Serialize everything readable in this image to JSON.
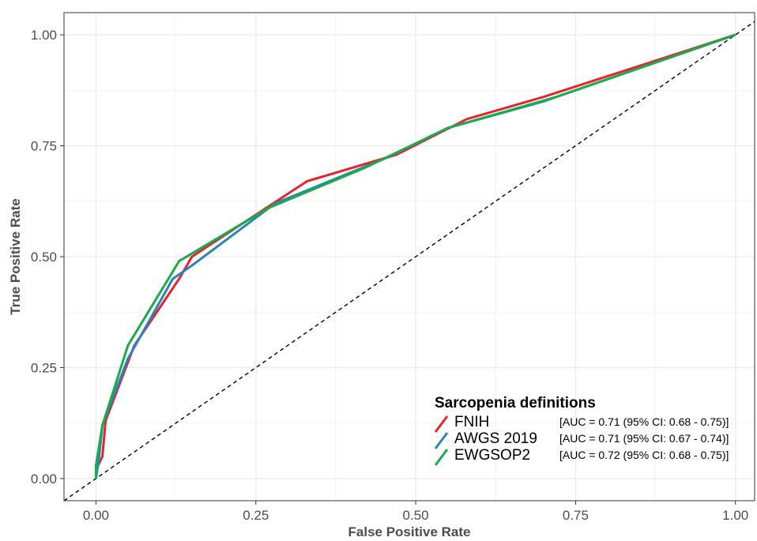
{
  "chart_data": {
    "type": "line",
    "xlabel": "False Positive Rate",
    "ylabel": "True Positive Rate",
    "xlim": [
      -0.05,
      1.03
    ],
    "ylim": [
      -0.05,
      1.05
    ],
    "x_ticks": [
      0,
      0.25,
      0.5,
      0.75,
      1
    ],
    "x_tick_labels": [
      "0.00",
      "0.25",
      "0.50",
      "0.75",
      "1.00"
    ],
    "y_ticks": [
      0,
      0.25,
      0.5,
      0.75,
      1
    ],
    "y_tick_labels": [
      "0.00",
      "0.25",
      "0.50",
      "0.75",
      "1.00"
    ],
    "grid": true,
    "legend": {
      "title": "Sarcopenia definitions",
      "placement": "bottom-right"
    },
    "reference_line": {
      "style": "dashed",
      "color": "#000000",
      "points": [
        [
          -0.05,
          -0.05
        ],
        [
          1.03,
          1.03
        ]
      ]
    },
    "series": [
      {
        "name": "FNIH",
        "auc_label": "[AUC = 0.71 (95% CI: 0.68 - 0.75)]",
        "color": "#e8242b",
        "points": [
          [
            0,
            0
          ],
          [
            0,
            0.02
          ],
          [
            0.01,
            0.05
          ],
          [
            0.015,
            0.13
          ],
          [
            0.06,
            0.3
          ],
          [
            0.13,
            0.45
          ],
          [
            0.15,
            0.5
          ],
          [
            0.33,
            0.67
          ],
          [
            0.47,
            0.73
          ],
          [
            0.58,
            0.81
          ],
          [
            0.7,
            0.86
          ],
          [
            1,
            1
          ]
        ]
      },
      {
        "name": "AWGS 2019",
        "auc_label": "[AUC = 0.71 (95% CI: 0.67 - 0.74)]",
        "color": "#2b83ba",
        "points": [
          [
            0,
            0
          ],
          [
            0.005,
            0.05
          ],
          [
            0.01,
            0.12
          ],
          [
            0.05,
            0.27
          ],
          [
            0.12,
            0.45
          ],
          [
            0.15,
            0.48
          ],
          [
            0.28,
            0.62
          ],
          [
            0.45,
            0.72
          ],
          [
            0.55,
            0.79
          ],
          [
            0.7,
            0.85
          ],
          [
            1,
            1
          ]
        ]
      },
      {
        "name": "EWGSOP2",
        "auc_label": "[AUC = 0.72 (95% CI: 0.68 - 0.75)]",
        "color": "#1aab4b",
        "points": [
          [
            0,
            0
          ],
          [
            0,
            0.03
          ],
          [
            0.01,
            0.12
          ],
          [
            0.05,
            0.3
          ],
          [
            0.13,
            0.49
          ],
          [
            0.27,
            0.61
          ],
          [
            0.42,
            0.7
          ],
          [
            0.55,
            0.79
          ],
          [
            0.72,
            0.86
          ],
          [
            1,
            1
          ]
        ]
      }
    ]
  }
}
